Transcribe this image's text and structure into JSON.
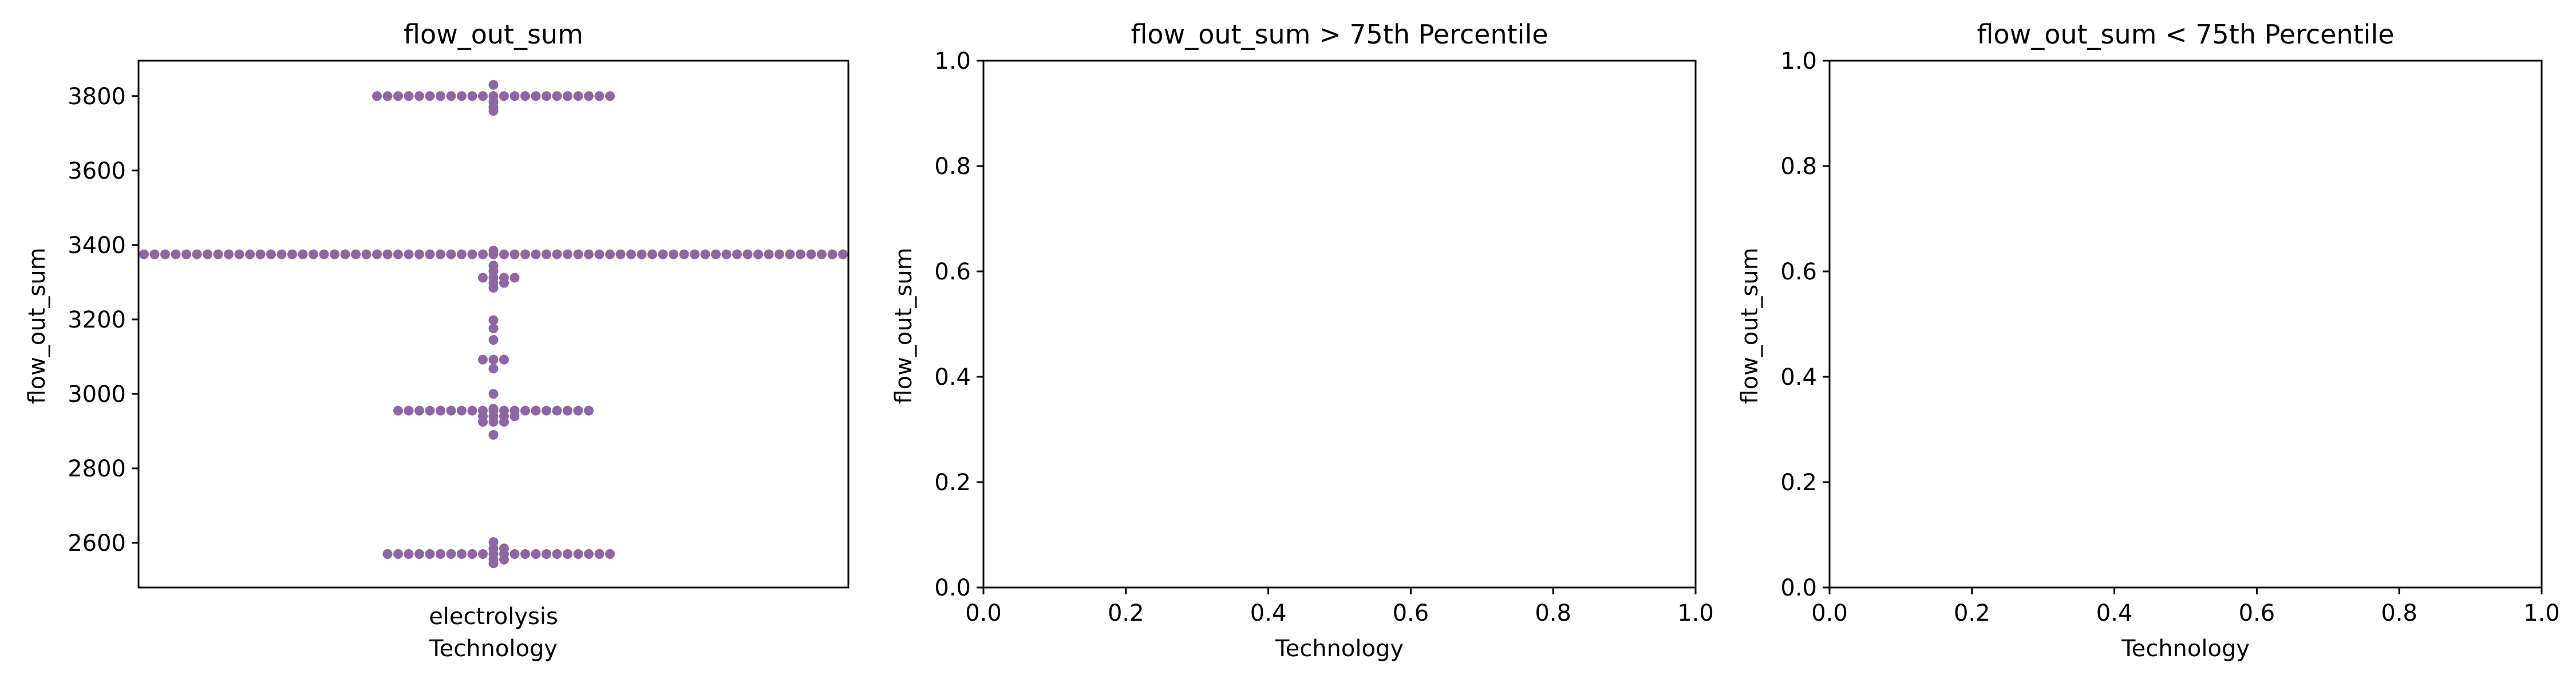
{
  "chart_data": [
    {
      "type": "scatter",
      "title": "flow_out_sum",
      "xlabel": "Technology",
      "ylabel": "flow_out_sum",
      "categories": [
        "electrolysis"
      ],
      "ylim": [
        2480,
        3895
      ],
      "yticks": [
        2600,
        2800,
        3000,
        3200,
        3400,
        3600,
        3800
      ],
      "series_color": "#8c67a3",
      "value_groups": [
        {
          "value": 3800,
          "count": 23
        },
        {
          "value": 3830,
          "count": 1
        },
        {
          "value": 3785,
          "count": 1
        },
        {
          "value": 3770,
          "count": 1
        },
        {
          "value": 3760,
          "count": 1
        },
        {
          "value": 3375,
          "count": 77
        },
        {
          "value": 3385,
          "count": 1
        },
        {
          "value": 3345,
          "count": 1
        },
        {
          "value": 3330,
          "count": 1
        },
        {
          "value": 3312,
          "count": 4
        },
        {
          "value": 3298,
          "count": 2
        },
        {
          "value": 3285,
          "count": 1
        },
        {
          "value": 3198,
          "count": 1
        },
        {
          "value": 3176,
          "count": 1
        },
        {
          "value": 3145,
          "count": 1
        },
        {
          "value": 3092,
          "count": 3
        },
        {
          "value": 3068,
          "count": 1
        },
        {
          "value": 3000,
          "count": 1
        },
        {
          "value": 2960,
          "count": 1
        },
        {
          "value": 2955,
          "count": 19
        },
        {
          "value": 2940,
          "count": 4
        },
        {
          "value": 2925,
          "count": 3
        },
        {
          "value": 2890,
          "count": 1
        },
        {
          "value": 2602,
          "count": 1
        },
        {
          "value": 2570,
          "count": 22
        },
        {
          "value": 2585,
          "count": 2
        },
        {
          "value": 2555,
          "count": 2
        },
        {
          "value": 2545,
          "count": 1
        }
      ]
    },
    {
      "type": "scatter",
      "title": "flow_out_sum > 75th Percentile",
      "xlabel": "Technology",
      "ylabel": "flow_out_sum",
      "xlim": [
        0,
        1
      ],
      "ylim": [
        0,
        1
      ],
      "xticks": [
        "0.0",
        "0.2",
        "0.4",
        "0.6",
        "0.8",
        "1.0"
      ],
      "yticks": [
        "0.0",
        "0.2",
        "0.4",
        "0.6",
        "0.8",
        "1.0"
      ]
    },
    {
      "type": "scatter",
      "title": "flow_out_sum < 75th Percentile",
      "xlabel": "Technology",
      "ylabel": "flow_out_sum",
      "xlim": [
        0,
        1
      ],
      "ylim": [
        0,
        1
      ],
      "xticks": [
        "0.0",
        "0.2",
        "0.4",
        "0.6",
        "0.8",
        "1.0"
      ],
      "yticks": [
        "0.0",
        "0.2",
        "0.4",
        "0.6",
        "0.8",
        "1.0"
      ]
    }
  ]
}
